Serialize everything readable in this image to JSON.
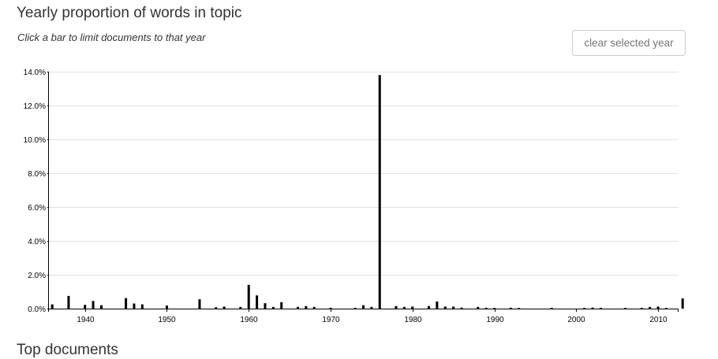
{
  "header": {
    "title": "Yearly proportion of words in topic",
    "subtitle": "Click a bar to limit documents to that year",
    "clear_button_label": "clear selected year"
  },
  "next_section": {
    "heading": "Top documents"
  },
  "chart_data": {
    "type": "bar",
    "title": "Yearly proportion of words in topic",
    "xlabel": "",
    "ylabel": "",
    "xlim": [
      1936,
      2013
    ],
    "ylim": [
      0,
      14
    ],
    "y_ticks": [
      {
        "value": 0,
        "label": "0.0%"
      },
      {
        "value": 2,
        "label": "2.0%"
      },
      {
        "value": 4,
        "label": "4.0%"
      },
      {
        "value": 6,
        "label": "6.0%"
      },
      {
        "value": 8,
        "label": "8.0%"
      },
      {
        "value": 10,
        "label": "10.0%"
      },
      {
        "value": 12,
        "label": "12.0%"
      },
      {
        "value": 14,
        "label": "14.0%"
      }
    ],
    "x_ticks": [
      {
        "value": 1940,
        "label": "1940"
      },
      {
        "value": 1950,
        "label": "1950"
      },
      {
        "value": 1960,
        "label": "1960"
      },
      {
        "value": 1970,
        "label": "1970"
      },
      {
        "value": 1980,
        "label": "1980"
      },
      {
        "value": 1990,
        "label": "1990"
      },
      {
        "value": 2000,
        "label": "2000"
      },
      {
        "value": 2010,
        "label": "2010"
      }
    ],
    "grid": true,
    "legend": "none",
    "bar_color": "#000000",
    "years": [
      1936,
      1938,
      1940,
      1941,
      1942,
      1945,
      1946,
      1947,
      1950,
      1954,
      1956,
      1957,
      1959,
      1960,
      1961,
      1962,
      1963,
      1964,
      1966,
      1967,
      1968,
      1970,
      1973,
      1974,
      1975,
      1976,
      1978,
      1979,
      1980,
      1982,
      1983,
      1984,
      1985,
      1986,
      1988,
      1989,
      1990,
      1992,
      1993,
      1997,
      2001,
      2002,
      2003,
      2006,
      2008,
      2009,
      2010,
      2011,
      2013
    ],
    "values": [
      0.25,
      0.75,
      0.22,
      0.45,
      0.2,
      0.62,
      0.3,
      0.25,
      0.18,
      0.55,
      0.08,
      0.12,
      0.1,
      1.4,
      0.78,
      0.32,
      0.1,
      0.38,
      0.1,
      0.15,
      0.1,
      0.05,
      0.05,
      0.2,
      0.1,
      13.8,
      0.15,
      0.1,
      0.12,
      0.15,
      0.42,
      0.12,
      0.12,
      0.06,
      0.1,
      0.05,
      0.04,
      0.05,
      0.04,
      0.05,
      0.04,
      0.06,
      0.05,
      0.04,
      0.04,
      0.1,
      0.12,
      0.04,
      0.6
    ]
  }
}
